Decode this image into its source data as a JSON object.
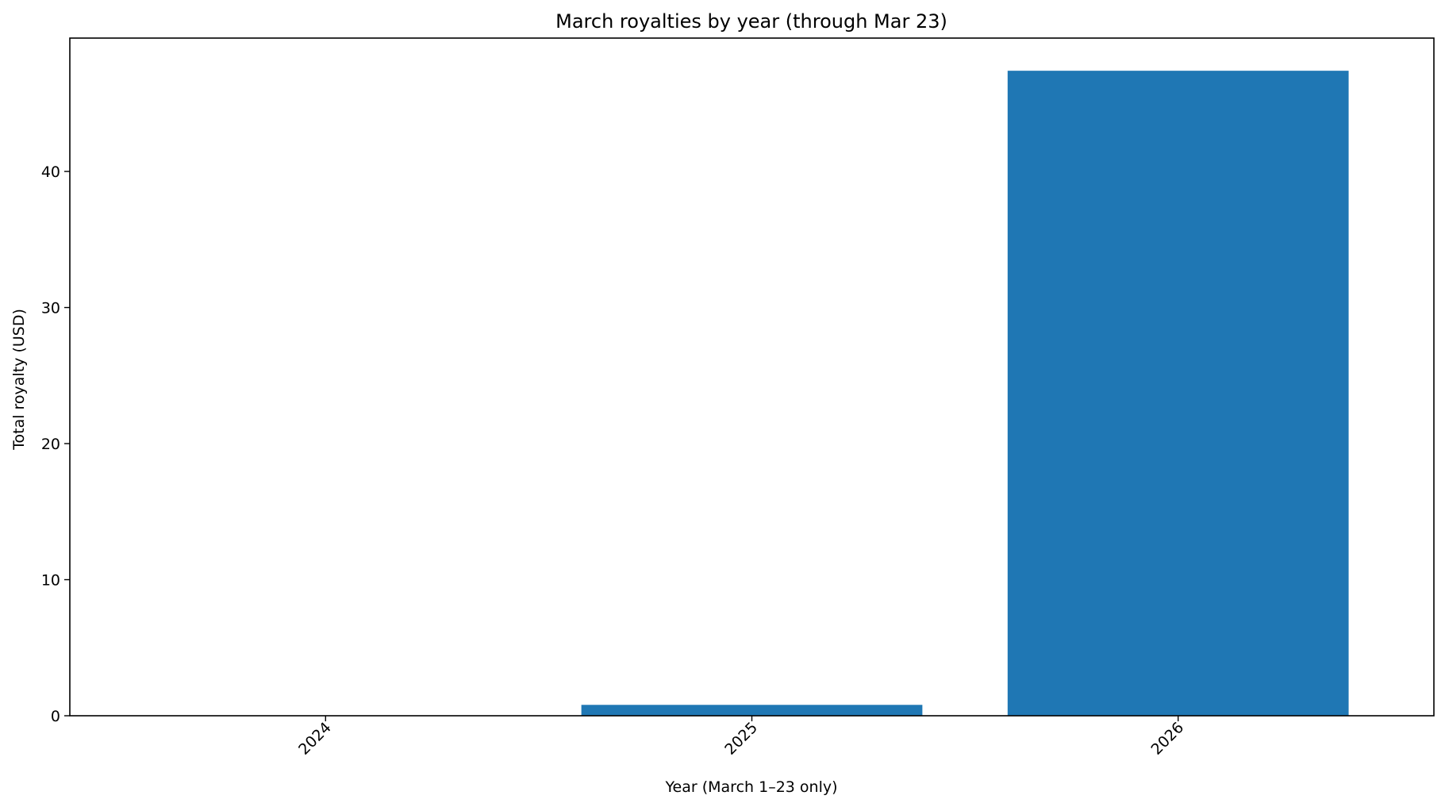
{
  "chart_data": {
    "type": "bar",
    "title": "March royalties by year (through Mar 23)",
    "xlabel": "Year (March 1–23 only)",
    "ylabel": "Total royalty (USD)",
    "categories": [
      "2024",
      "2025",
      "2026"
    ],
    "values": [
      0,
      0.8,
      47.4
    ],
    "ylim": [
      0,
      49.8
    ],
    "yticks": [
      0,
      10,
      20,
      30,
      40
    ],
    "x_tick_rotation_deg": 45,
    "bar_color": "#1f77b4",
    "grid": false,
    "legend": "none"
  }
}
